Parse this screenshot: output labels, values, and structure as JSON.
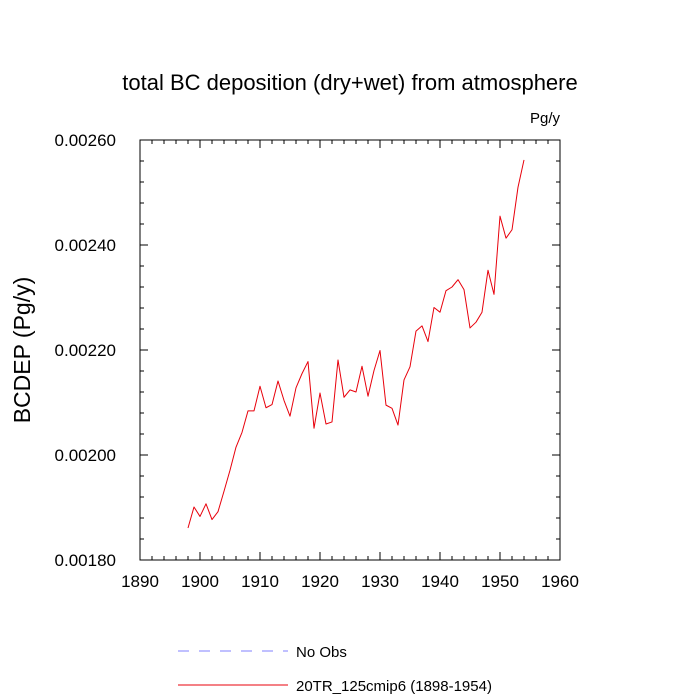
{
  "chart_data": {
    "type": "line",
    "title": "total BC deposition (dry+wet) from atmosphere",
    "units_label": "Pg/y",
    "xlabel": "",
    "ylabel": "BCDEP  (Pg/y)",
    "xlim": [
      1890,
      1960
    ],
    "ylim": [
      0.0018,
      0.0026
    ],
    "x_ticks": [
      1890,
      1900,
      1910,
      1920,
      1930,
      1940,
      1950,
      1960
    ],
    "x_tick_labels": [
      "1890",
      "1900",
      "1910",
      "1920",
      "1930",
      "1940",
      "1950",
      "1960"
    ],
    "y_ticks": [
      0.0018,
      0.002,
      0.0022,
      0.0024,
      0.0026
    ],
    "y_tick_labels": [
      "0.00180",
      "0.00200",
      "0.00220",
      "0.00240",
      "0.00260"
    ],
    "grid": false,
    "legend_position": "bottom",
    "series": [
      {
        "name": "20TR_125cmip6 (1898-1954)",
        "color": "#e8000b",
        "style": "solid",
        "x": [
          1898,
          1899,
          1900,
          1901,
          1902,
          1903,
          1904,
          1905,
          1906,
          1907,
          1908,
          1909,
          1910,
          1911,
          1912,
          1913,
          1914,
          1915,
          1916,
          1917,
          1918,
          1919,
          1920,
          1921,
          1922,
          1923,
          1924,
          1925,
          1926,
          1927,
          1928,
          1929,
          1930,
          1931,
          1932,
          1933,
          1934,
          1935,
          1936,
          1937,
          1938,
          1939,
          1940,
          1941,
          1942,
          1943,
          1944,
          1945,
          1946,
          1947,
          1948,
          1949,
          1950,
          1951,
          1952,
          1953,
          1954
        ],
        "values": [
          0.001861,
          0.001901,
          0.001883,
          0.001907,
          0.001877,
          0.001892,
          0.001931,
          0.001971,
          0.002015,
          0.002043,
          0.002084,
          0.002084,
          0.002131,
          0.00209,
          0.002096,
          0.002141,
          0.002104,
          0.002074,
          0.002128,
          0.002155,
          0.002178,
          0.002051,
          0.002118,
          0.002059,
          0.002063,
          0.002181,
          0.00211,
          0.002124,
          0.00212,
          0.002169,
          0.002112,
          0.002161,
          0.002199,
          0.002095,
          0.002089,
          0.002057,
          0.002143,
          0.002168,
          0.002236,
          0.002246,
          0.002216,
          0.002281,
          0.002272,
          0.002313,
          0.00232,
          0.002334,
          0.002315,
          0.002242,
          0.002253,
          0.002272,
          0.002352,
          0.002306,
          0.002455,
          0.002413,
          0.002429,
          0.00251,
          0.002562
        ]
      }
    ],
    "legend": [
      {
        "name": "No Obs",
        "color": "#8080ff",
        "style": "dashed"
      },
      {
        "name": "20TR_125cmip6 (1898-1954)",
        "color": "#e8000b",
        "style": "solid"
      }
    ]
  }
}
